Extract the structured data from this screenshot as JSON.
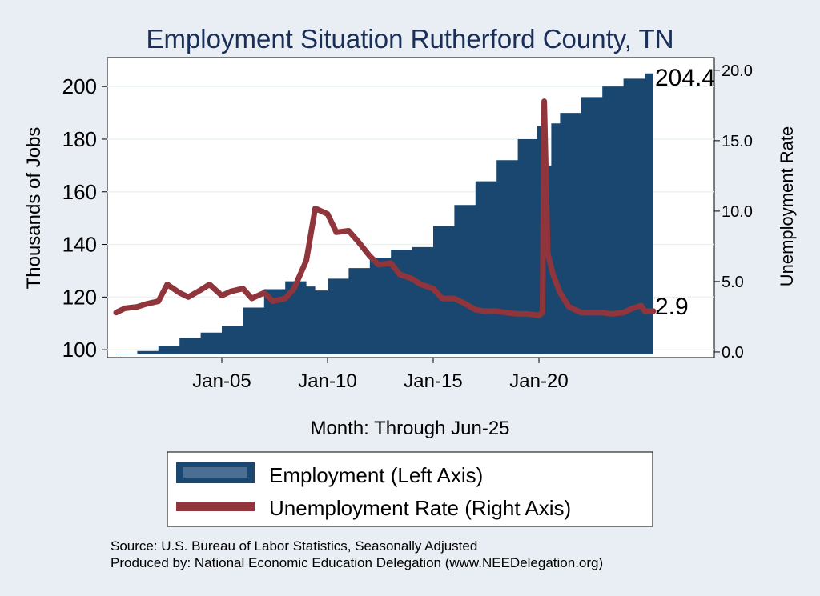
{
  "chart_data": {
    "type": "area+line",
    "title": "Employment Situation Rutherford  County, TN",
    "xlabel": "Month: Through Jun-25",
    "ylabel_left": "Thousands of Jobs",
    "ylabel_right": "Unemployment Rate",
    "ylim_left": [
      97,
      211
    ],
    "ylim_right": [
      -0.4,
      20.9
    ],
    "yticks_left": [
      "100",
      "120",
      "140",
      "160",
      "180",
      "200"
    ],
    "yticks_right": [
      "0.0",
      "5.0",
      "10.0",
      "15.0",
      "20.0"
    ],
    "xticks": [
      "Jan-05",
      "Jan-10",
      "Jan-15",
      "Jan-20"
    ],
    "x_range": [
      "Jan-00",
      "Jun-25"
    ],
    "grid": true,
    "legend_position": "bottom",
    "series": [
      {
        "name": "Employment (Left Axis)",
        "kind": "area",
        "axis": "left",
        "color": "#1a476f",
        "points": [
          [
            "2000-01",
            98.5
          ],
          [
            "2001-01",
            99.5
          ],
          [
            "2002-01",
            101.5
          ],
          [
            "2003-01",
            104.5
          ],
          [
            "2004-01",
            106.5
          ],
          [
            "2005-01",
            109
          ],
          [
            "2006-01",
            116
          ],
          [
            "2007-01",
            123
          ],
          [
            "2008-01",
            126
          ],
          [
            "2008-06",
            126
          ],
          [
            "2009-01",
            124
          ],
          [
            "2009-06",
            122.5
          ],
          [
            "2010-01",
            127
          ],
          [
            "2011-01",
            131
          ],
          [
            "2012-01",
            135
          ],
          [
            "2013-01",
            138
          ],
          [
            "2014-01",
            139
          ],
          [
            "2015-01",
            147
          ],
          [
            "2016-01",
            155
          ],
          [
            "2017-01",
            164
          ],
          [
            "2018-01",
            172
          ],
          [
            "2019-01",
            180
          ],
          [
            "2019-12",
            185
          ],
          [
            "2020-04",
            170
          ],
          [
            "2020-08",
            186
          ],
          [
            "2021-01",
            190
          ],
          [
            "2022-01",
            196
          ],
          [
            "2023-01",
            200
          ],
          [
            "2024-01",
            203
          ],
          [
            "2025-01",
            205
          ],
          [
            "2025-06",
            204.4
          ]
        ]
      },
      {
        "name": "Unemployment Rate (Right Axis)",
        "kind": "line",
        "axis": "right",
        "color": "#90353b",
        "points": [
          [
            "2000-01",
            2.8
          ],
          [
            "2000-06",
            3.1
          ],
          [
            "2001-01",
            3.2
          ],
          [
            "2001-06",
            3.4
          ],
          [
            "2002-01",
            3.6
          ],
          [
            "2002-06",
            4.8
          ],
          [
            "2003-01",
            4.2
          ],
          [
            "2003-06",
            3.9
          ],
          [
            "2004-01",
            4.4
          ],
          [
            "2004-06",
            4.8
          ],
          [
            "2005-01",
            4.0
          ],
          [
            "2005-06",
            4.3
          ],
          [
            "2006-01",
            4.5
          ],
          [
            "2006-06",
            3.8
          ],
          [
            "2007-01",
            4.2
          ],
          [
            "2007-06",
            3.6
          ],
          [
            "2008-01",
            3.8
          ],
          [
            "2008-06",
            4.5
          ],
          [
            "2009-01",
            6.5
          ],
          [
            "2009-06",
            10.2
          ],
          [
            "2010-01",
            9.8
          ],
          [
            "2010-06",
            8.5
          ],
          [
            "2011-01",
            8.6
          ],
          [
            "2011-06",
            7.9
          ],
          [
            "2012-01",
            6.8
          ],
          [
            "2012-06",
            6.2
          ],
          [
            "2013-01",
            6.3
          ],
          [
            "2013-06",
            5.5
          ],
          [
            "2014-01",
            5.2
          ],
          [
            "2014-06",
            4.8
          ],
          [
            "2015-01",
            4.5
          ],
          [
            "2015-06",
            3.8
          ],
          [
            "2016-01",
            3.8
          ],
          [
            "2016-06",
            3.5
          ],
          [
            "2017-01",
            3.0
          ],
          [
            "2017-06",
            2.9
          ],
          [
            "2018-01",
            2.9
          ],
          [
            "2018-06",
            2.8
          ],
          [
            "2019-01",
            2.7
          ],
          [
            "2019-06",
            2.7
          ],
          [
            "2020-01",
            2.6
          ],
          [
            "2020-03",
            2.8
          ],
          [
            "2020-04",
            17.8
          ],
          [
            "2020-06",
            7.0
          ],
          [
            "2020-09",
            5.5
          ],
          [
            "2021-01",
            4.2
          ],
          [
            "2021-06",
            3.2
          ],
          [
            "2022-01",
            2.8
          ],
          [
            "2022-06",
            2.8
          ],
          [
            "2023-01",
            2.8
          ],
          [
            "2023-06",
            2.7
          ],
          [
            "2024-01",
            2.8
          ],
          [
            "2024-06",
            3.1
          ],
          [
            "2024-11",
            3.3
          ],
          [
            "2025-01",
            2.9
          ],
          [
            "2025-06",
            2.9
          ]
        ]
      }
    ],
    "end_labels": {
      "employment": "204.4",
      "unemployment": "2.9"
    }
  },
  "source": "Source: U.S. Bureau of Labor Statistics, Seasonally Adjusted",
  "produced_by": "Produced by: National Economic Education Delegation (www.NEEDelegation.org)"
}
